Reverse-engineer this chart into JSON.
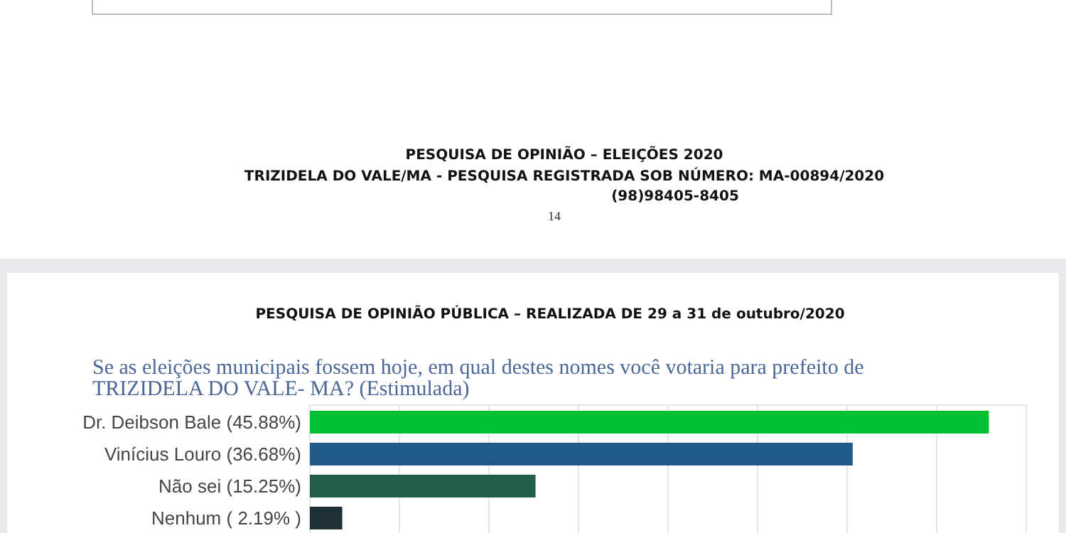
{
  "chart_data": {
    "type": "bar",
    "orientation": "horizontal",
    "title": "PESQUISA DE OPINIÃO PÚBLICA – REALIZADA DE 29 a 31 de outubro/2020",
    "subtitle": "Se as eleições municipais fossem hoje, em qual destes nomes você votaria para prefeito de TRIZIDELA DO VALE- MA? (Estimulada)",
    "categories": [
      "Dr. Deibson Bale",
      "Vinícius Louro",
      "Não sei",
      "Nenhum"
    ],
    "values": [
      45.88,
      36.68,
      15.25,
      2.19
    ],
    "value_labels": [
      "(45.88%)",
      "(36.68%)",
      "(15.25%)",
      "( 2.19% )"
    ],
    "colors": [
      "#00c132",
      "#1f5a8a",
      "#225e47",
      "#1f3138"
    ],
    "grid": "x",
    "annotations": [
      "PESQUISA DE OPINIÃO – ELEIÇÕES 2020",
      "TRIZIDELA DO VALE/MA - PESQUISA REGISTRADA SOB NÚMERO: MA-00894/2020",
      "(98)98405-8405",
      "14"
    ]
  }
}
